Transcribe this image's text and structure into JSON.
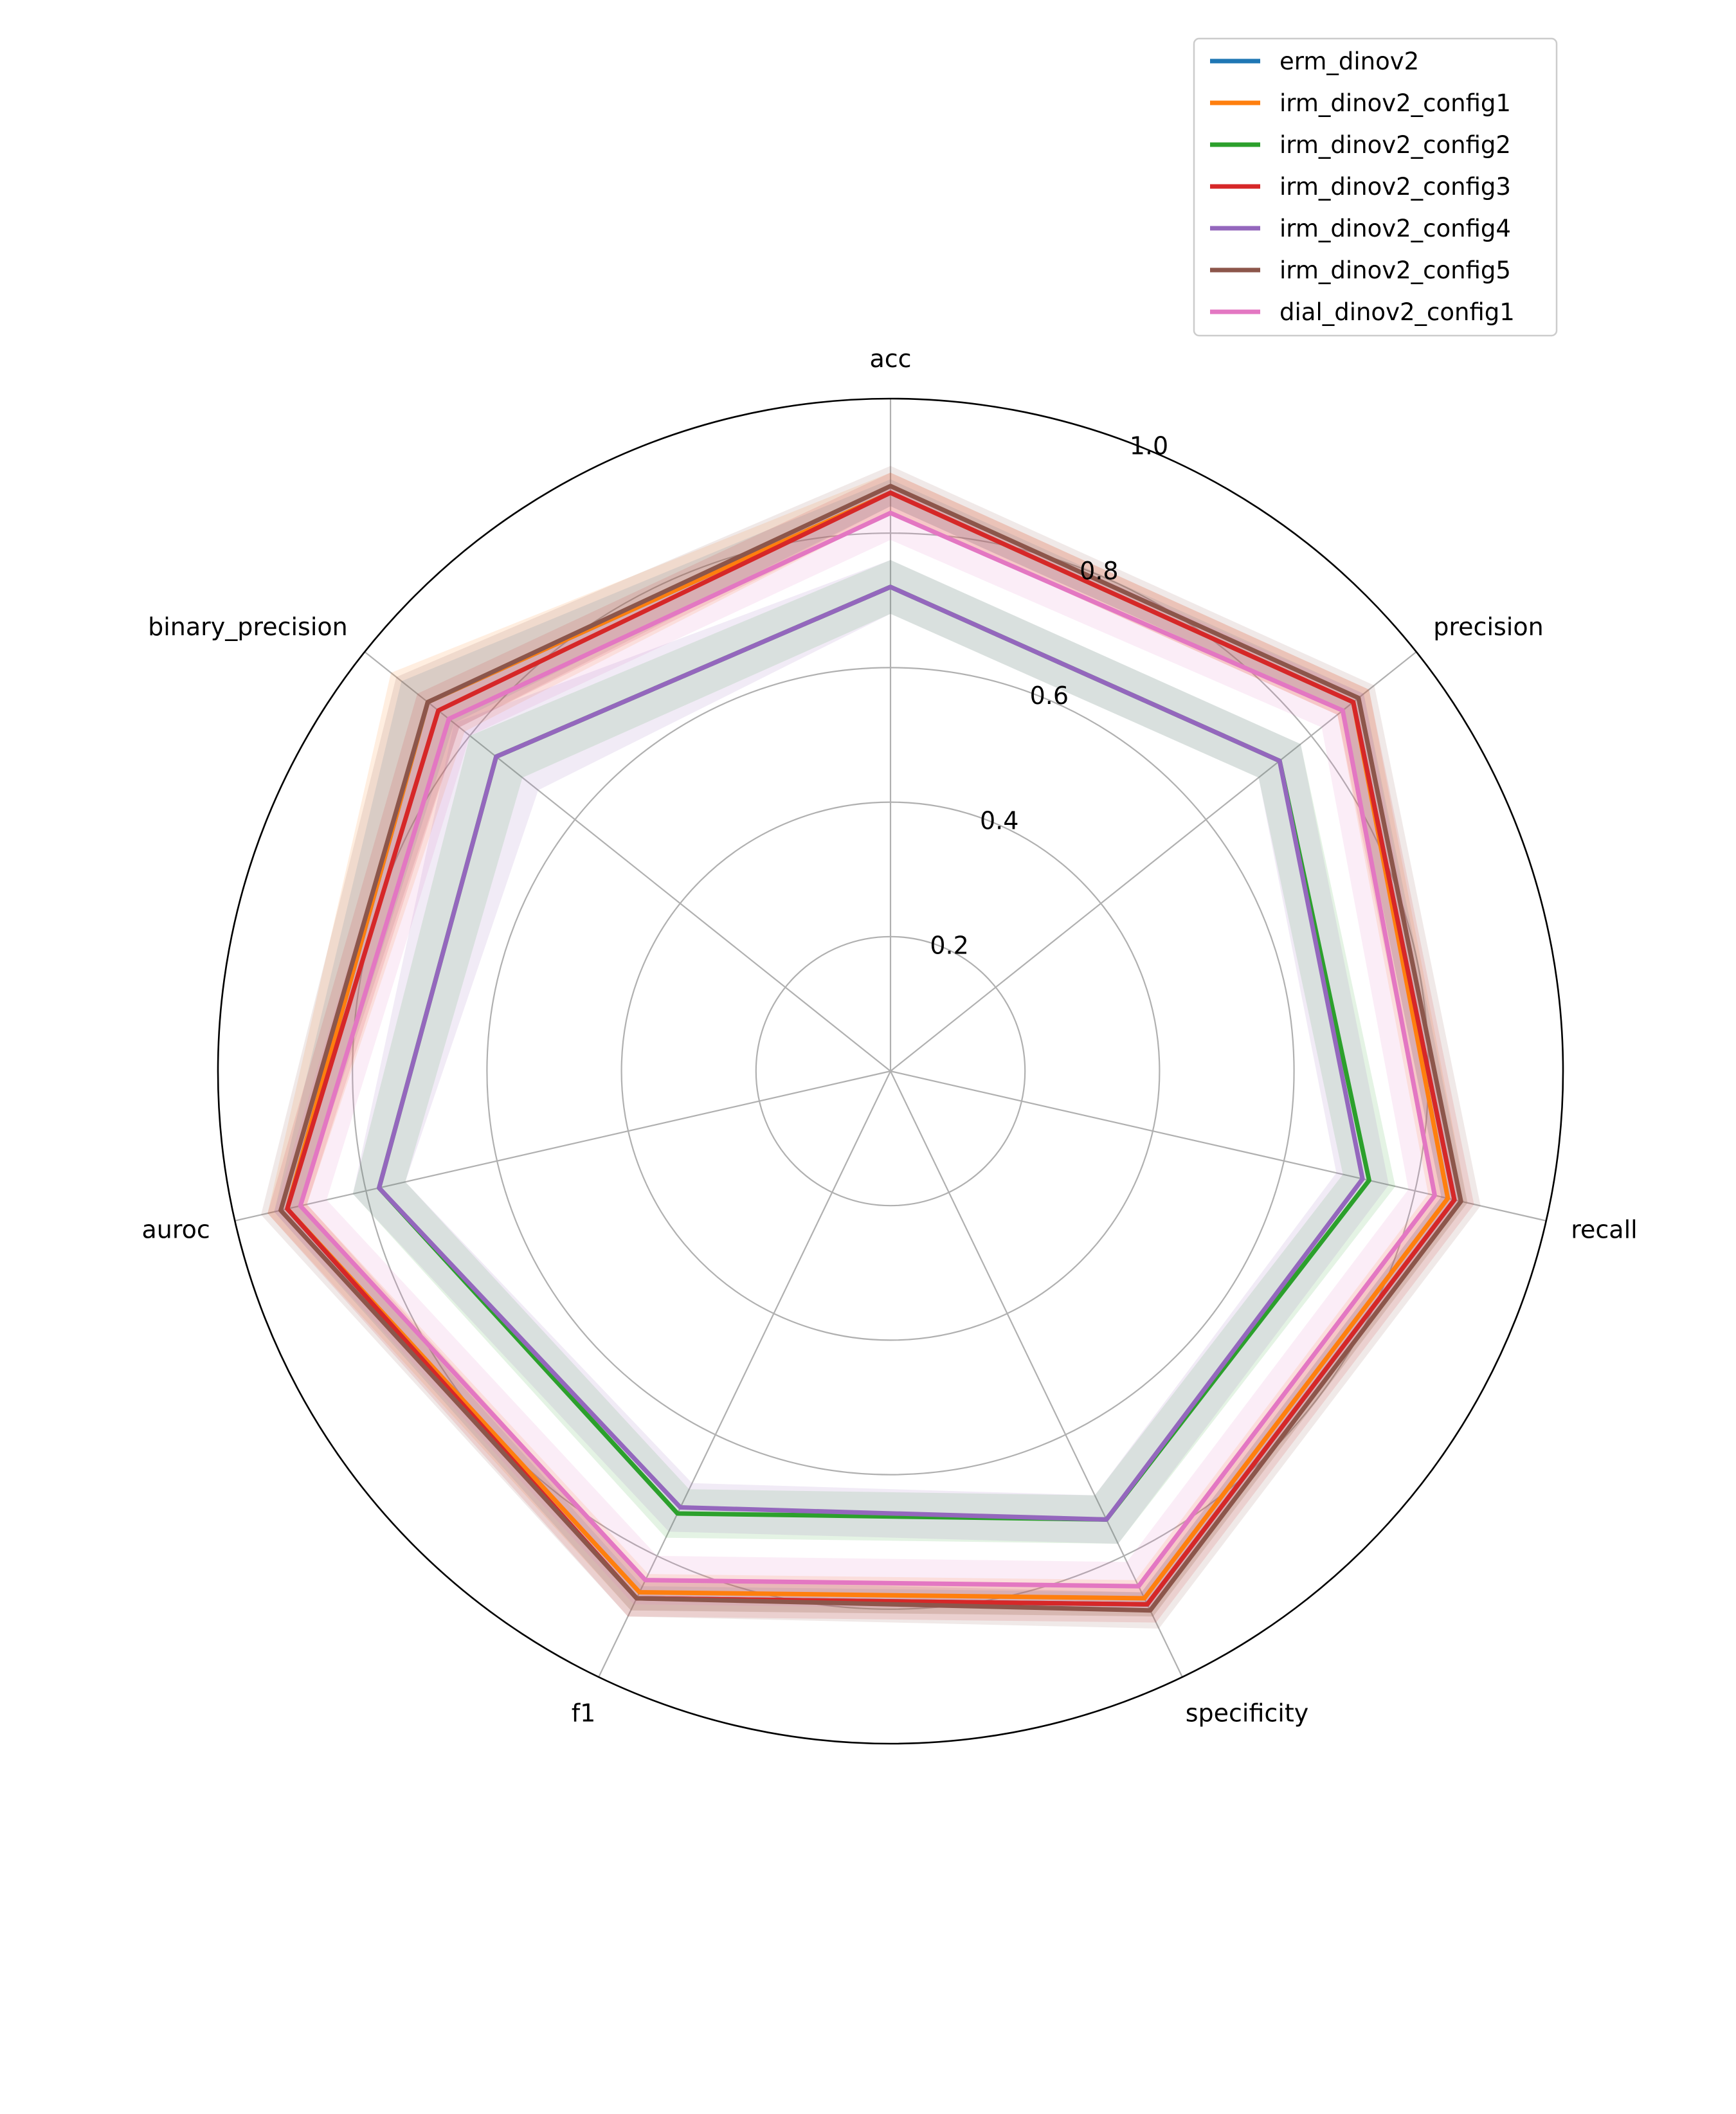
{
  "chart_data": {
    "type": "radar",
    "axes": [
      "acc",
      "precision",
      "recall",
      "specificity",
      "f1",
      "auroc",
      "binary_precision"
    ],
    "radial_ticks": [
      "0.2",
      "0.4",
      "0.6",
      "0.8",
      "1.0"
    ],
    "rlim": [
      0,
      1.0
    ],
    "grid": true,
    "legend_position": "top-right",
    "series": [
      {
        "name": "erm_dinov2",
        "color": "#1f77b4",
        "values": [
          0.86,
          0.88,
          0.86,
          0.88,
          0.87,
          0.92,
          0.88
        ],
        "band": [
          0.02,
          0.02,
          0.02,
          0.02,
          0.02,
          0.02,
          0.05
        ]
      },
      {
        "name": "irm_dinov2_config1",
        "color": "#ff7f0e",
        "values": [
          0.86,
          0.88,
          0.85,
          0.87,
          0.86,
          0.92,
          0.88
        ],
        "band": [
          0.03,
          0.03,
          0.03,
          0.03,
          0.03,
          0.03,
          0.07
        ]
      },
      {
        "name": "irm_dinov2_config2",
        "color": "#2ca02c",
        "values": [
          0.72,
          0.74,
          0.73,
          0.74,
          0.73,
          0.78,
          0.75
        ],
        "band": [
          0.04,
          0.04,
          0.04,
          0.04,
          0.04,
          0.04,
          0.05
        ]
      },
      {
        "name": "irm_dinov2_config3",
        "color": "#d62728",
        "values": [
          0.86,
          0.88,
          0.86,
          0.88,
          0.87,
          0.92,
          0.86
        ],
        "band": [
          0.03,
          0.03,
          0.03,
          0.03,
          0.03,
          0.03,
          0.04
        ]
      },
      {
        "name": "irm_dinov2_config4",
        "color": "#9467bd",
        "values": [
          0.72,
          0.74,
          0.72,
          0.74,
          0.72,
          0.78,
          0.75
        ],
        "band": [
          0.04,
          0.04,
          0.04,
          0.04,
          0.04,
          0.04,
          0.08
        ]
      },
      {
        "name": "irm_dinov2_config5",
        "color": "#8c564b",
        "values": [
          0.87,
          0.89,
          0.87,
          0.89,
          0.87,
          0.93,
          0.88
        ],
        "band": [
          0.03,
          0.03,
          0.03,
          0.03,
          0.03,
          0.03,
          0.06
        ]
      },
      {
        "name": "dial_dinov2_config1",
        "color": "#e377c2",
        "values": [
          0.83,
          0.86,
          0.83,
          0.85,
          0.84,
          0.9,
          0.84
        ],
        "band": [
          0.04,
          0.04,
          0.04,
          0.04,
          0.04,
          0.04,
          0.04
        ]
      }
    ]
  }
}
